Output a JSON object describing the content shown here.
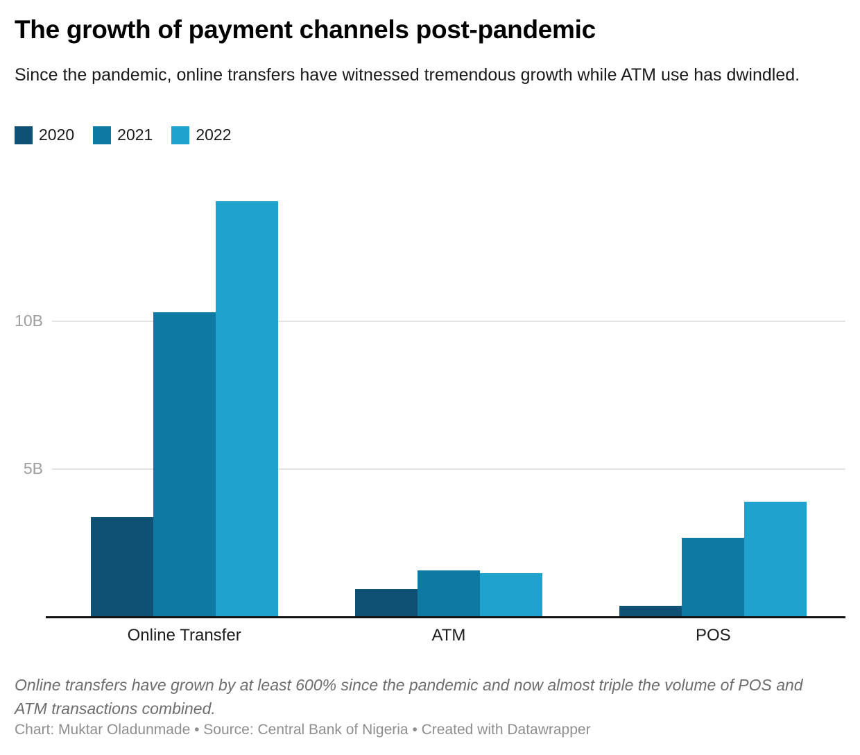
{
  "header": {
    "title": "The growth of payment channels post-pandemic",
    "subtitle": "Since the pandemic, online transfers have witnessed tremendous growth while ATM use has dwindled."
  },
  "chart_data": {
    "type": "bar",
    "title": "The growth of payment channels post-pandemic",
    "subtitle": "Since the pandemic, online transfers have witnessed tremendous growth while ATM use has dwindled.",
    "categories": [
      "Online Transfer",
      "ATM",
      "POS"
    ],
    "series": [
      {
        "name": "2020",
        "color": "#0e5175",
        "values": [
          3.4,
          0.95,
          0.4
        ]
      },
      {
        "name": "2021",
        "color": "#0e7aa4",
        "values": [
          10.3,
          1.6,
          2.7
        ]
      },
      {
        "name": "2022",
        "color": "#20a2ce",
        "values": [
          14.05,
          1.5,
          3.9
        ]
      }
    ],
    "unit": "transactions (billions)",
    "value_suffix": "B",
    "xlabel": "",
    "ylabel": "",
    "ylim": [
      0,
      14.7
    ],
    "y_ticks": [
      {
        "value": 5,
        "label": "5B"
      },
      {
        "value": 10,
        "label": "10B"
      }
    ],
    "grid": "horizontal-only",
    "legend_position": "top-left"
  },
  "footer": {
    "note": "Online transfers have grown by at least 600% since the pandemic and now almost triple the volume of POS and ATM transactions combined.",
    "byline": "Chart: Muktar Oladunmade • Source: Central Bank of Nigeria • Created with Datawrapper"
  },
  "colors": {
    "background": "#ffffff",
    "gridline": "#e3e3e3",
    "axis_line": "#121212",
    "tick_label": "#9d9d9d",
    "category_label": "#1d1d1d",
    "title_text": "#000000",
    "subtitle_text": "#1a1a1a",
    "note_text": "#6d6d6d",
    "byline_text": "#8e8e8e"
  }
}
